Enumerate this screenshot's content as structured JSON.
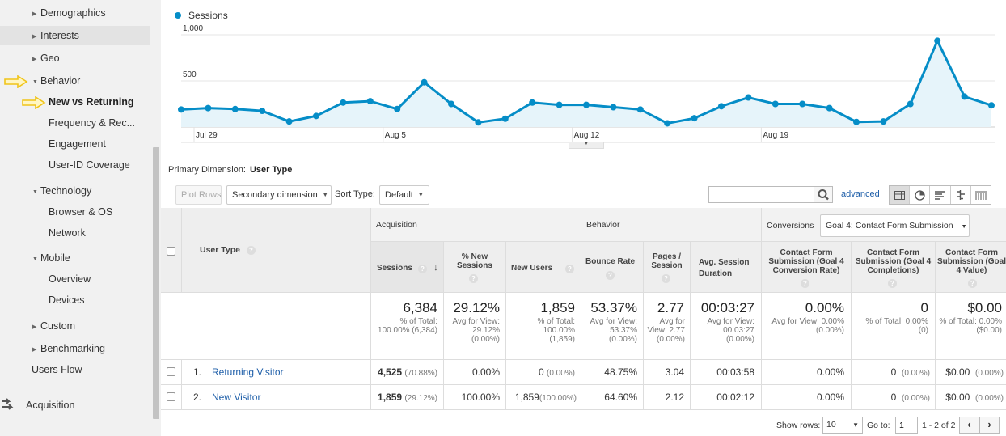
{
  "sidebar": {
    "items": [
      {
        "label": "Demographics"
      },
      {
        "label": "Interests"
      },
      {
        "label": "Geo"
      },
      {
        "label": "Behavior"
      },
      {
        "label": "New vs Returning"
      },
      {
        "label": "Frequency & Rec..."
      },
      {
        "label": "Engagement"
      },
      {
        "label": "User-ID Coverage"
      },
      {
        "label": "Technology"
      },
      {
        "label": "Browser & OS"
      },
      {
        "label": "Network"
      },
      {
        "label": "Mobile"
      },
      {
        "label": "Overview"
      },
      {
        "label": "Devices"
      },
      {
        "label": "Custom"
      },
      {
        "label": "Benchmarking"
      },
      {
        "label": "Users Flow"
      },
      {
        "label": "Acquisition"
      }
    ],
    "arrow_color": "#f5c518",
    "collapsed_icon": "triangle-right-icon",
    "expanded_icon": "triangle-down-icon"
  },
  "chart_data": {
    "type": "area",
    "legend": "Sessions",
    "color": "#058dc7",
    "y_ticks": [
      "1,000",
      "500"
    ],
    "ylim": [
      0,
      1000
    ],
    "x_tick_labels": [
      "Jul 29",
      "Aug 5",
      "Aug 12",
      "Aug 19"
    ],
    "x_tick_positions": [
      0,
      7,
      14,
      21
    ],
    "series": [
      {
        "values": [
          190,
          205,
          195,
          175,
          60,
          120,
          265,
          280,
          195,
          485,
          250,
          50,
          90,
          265,
          240,
          240,
          215,
          190,
          40,
          95,
          225,
          320,
          250,
          250,
          205,
          55,
          60,
          250,
          935,
          330,
          235
        ]
      }
    ]
  },
  "primary_dimension": {
    "label": "Primary Dimension:",
    "value": "User Type"
  },
  "toolbar": {
    "plot_rows": "Plot Rows",
    "secondary_dimension": "Secondary dimension",
    "sort_type_label": "Sort Type:",
    "sort_type_value": "Default",
    "search_placeholder": "",
    "advanced": "advanced"
  },
  "table": {
    "groups": {
      "acquisition": "Acquisition",
      "behavior": "Behavior",
      "conversions": "Conversions",
      "goal_select": "Goal 4: Contact Form Submission"
    },
    "user_type_header": "User Type",
    "columns": [
      "Sessions",
      "% New Sessions",
      "New Users",
      "Bounce Rate",
      "Pages / Session",
      "Avg. Session Duration",
      "Contact Form Submission (Goal 4 Conversion Rate)",
      "Contact Form Submission (Goal 4 Completions)",
      "Contact Form Submission (Goal 4 Value)"
    ],
    "help_icon": "?",
    "totals": [
      {
        "main": "6,384",
        "sub": "% of Total: 100.00% (6,384)"
      },
      {
        "main": "29.12%",
        "sub": "Avg for View: 29.12% (0.00%)"
      },
      {
        "main": "1,859",
        "sub": "% of Total: 100.00% (1,859)"
      },
      {
        "main": "53.37%",
        "sub": "Avg for View: 53.37% (0.00%)"
      },
      {
        "main": "2.77",
        "sub": "Avg for View: 2.77 (0.00%)"
      },
      {
        "main": "00:03:27",
        "sub": "Avg for View: 00:03:27 (0.00%)"
      },
      {
        "main": "0.00%",
        "sub": "Avg for View: 0.00% (0.00%)"
      },
      {
        "main": "0",
        "sub": "% of Total: 0.00% (0)"
      },
      {
        "main": "$0.00",
        "sub": "% of Total: 0.00% ($0.00)"
      }
    ],
    "rows": [
      {
        "index": "1.",
        "name": "Returning Visitor",
        "sessions": "4,525",
        "sessions_pct": "(70.88%)",
        "pct_new": "0.00%",
        "new_users": "0",
        "new_users_pct": "(0.00%)",
        "bounce": "48.75%",
        "pages": "3.04",
        "duration": "00:03:58",
        "conv_rate": "0.00%",
        "completions": "0",
        "completions_pct": "(0.00%)",
        "value": "$0.00",
        "value_pct": "(0.00%)"
      },
      {
        "index": "2.",
        "name": "New Visitor",
        "sessions": "1,859",
        "sessions_pct": "(29.12%)",
        "pct_new": "100.00%",
        "new_users": "1,859",
        "new_users_pct": "(100.00%)",
        "bounce": "64.60%",
        "pages": "2.12",
        "duration": "00:02:12",
        "conv_rate": "0.00%",
        "completions": "0",
        "completions_pct": "(0.00%)",
        "value": "$0.00",
        "value_pct": "(0.00%)"
      }
    ]
  },
  "footer": {
    "show_rows_label": "Show rows:",
    "show_rows_value": "10",
    "goto_label": "Go to:",
    "goto_value": "1",
    "range": "1 - 2 of 2"
  }
}
